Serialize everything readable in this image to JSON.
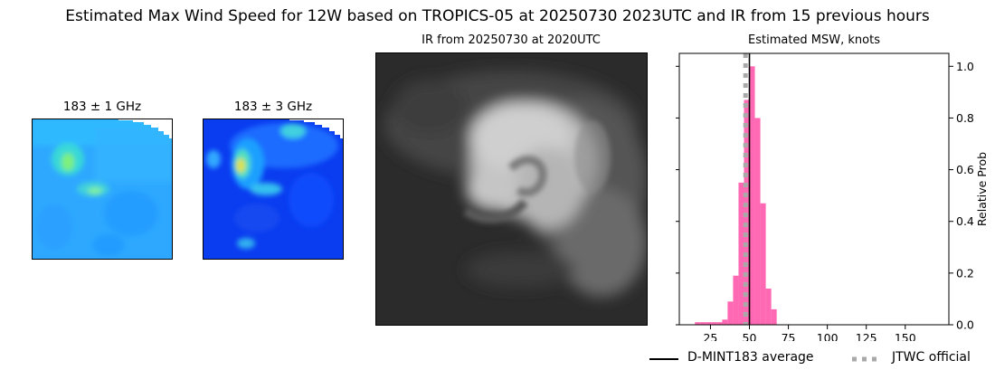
{
  "title": "Estimated Max Wind Speed for 12W based on TROPICS-05 at 20250730 2023UTC and IR from 15 previous hours",
  "panels": {
    "mw1": {
      "title": "183 ± 1 GHz"
    },
    "mw3": {
      "title": "183 ± 3 GHz"
    },
    "ir": {
      "title": "IR from 20250730 at 2020UTC"
    }
  },
  "colors": {
    "histogram": "#ff69b4",
    "average_line": "#000000",
    "official_line": "#a9a9a9",
    "ir_background": "#2b2b2b"
  },
  "chart_data": {
    "type": "bar",
    "title": "Estimated MSW, knots",
    "ylabel": "Relative Prob",
    "xlim": [
      5,
      178
    ],
    "ylim": [
      0,
      1.05
    ],
    "xticks": [
      25,
      50,
      75,
      100,
      125,
      150
    ],
    "yticks": [
      0.0,
      0.2,
      0.4,
      0.6,
      0.8,
      1.0
    ],
    "ytick_labels": [
      "0.0",
      "0.2",
      "0.4",
      "0.6",
      "0.8",
      "1.0"
    ],
    "bin_width": 3.5,
    "bin_starts": [
      15,
      18.5,
      22,
      25.5,
      29,
      32.5,
      36,
      39.5,
      43,
      46.5,
      50,
      53.5,
      57,
      60.5,
      64
    ],
    "values": [
      0.01,
      0.01,
      0.01,
      0.01,
      0.01,
      0.02,
      0.09,
      0.19,
      0.55,
      0.87,
      1.0,
      0.8,
      0.47,
      0.14,
      0.06
    ],
    "vlines": [
      {
        "name": "D-MINT183 average",
        "x": 50,
        "style": "solid"
      },
      {
        "name": "JTWC official",
        "x": 47.5,
        "style": "dotted"
      }
    ],
    "legend_position": "below"
  }
}
